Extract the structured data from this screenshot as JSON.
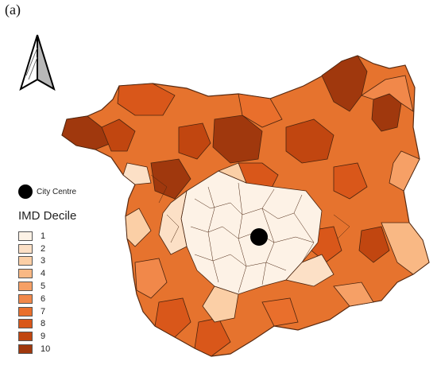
{
  "figure": {
    "panel_label": "(a)"
  },
  "map": {
    "north_arrow_icon": "north-arrow-icon",
    "city_centre_label": "City Centre",
    "legend_title": "IMD Decile",
    "deciles": [
      {
        "label": "1",
        "color": "#fdf2e6"
      },
      {
        "label": "2",
        "color": "#fce0c6"
      },
      {
        "label": "3",
        "color": "#fbcfa6"
      },
      {
        "label": "4",
        "color": "#f9b884"
      },
      {
        "label": "5",
        "color": "#f6a066"
      },
      {
        "label": "6",
        "color": "#f1884a"
      },
      {
        "label": "7",
        "color": "#e96f2c"
      },
      {
        "label": "8",
        "color": "#d9571a"
      },
      {
        "label": "9",
        "color": "#c14610"
      },
      {
        "label": "10",
        "color": "#a0380d"
      }
    ]
  }
}
